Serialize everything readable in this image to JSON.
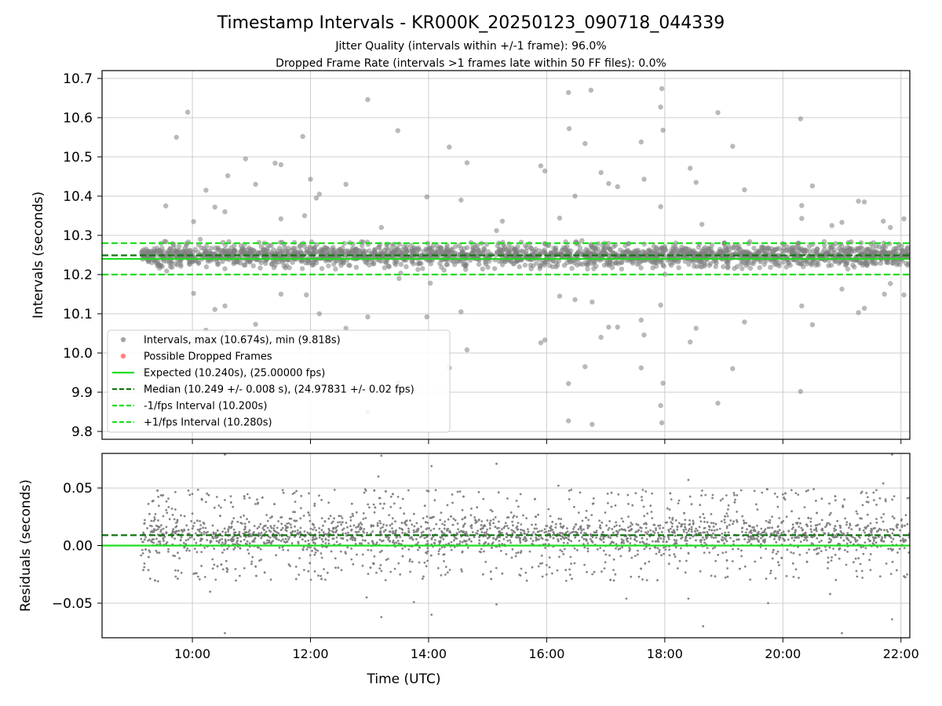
{
  "title": "Timestamp Intervals - KR000K_20250123_090718_044339",
  "subtitle_line1": "Jitter Quality (intervals within +/-1 frame): 96.0%",
  "subtitle_line2": "Dropped Frame Rate (intervals >1 frames late within 50 FF files): 0.0%",
  "colors": {
    "points": "#808080",
    "dropped": "#ff4d4d",
    "expected": "#22dd22",
    "median": "#117711",
    "interval_lines": "#22dd22",
    "grid": "#cccccc"
  },
  "chart_data": [
    {
      "type": "scatter",
      "panel": "top",
      "ylabel": "Intervals (seconds)",
      "xlabel": "",
      "xlim": [
        8.47,
        22.15
      ],
      "ylim": [
        9.78,
        10.72
      ],
      "x_unit": "hours UTC",
      "xticks": [
        10,
        12,
        14,
        16,
        18,
        20,
        22
      ],
      "xtick_labels": [],
      "yticks": [
        9.8,
        9.9,
        10.0,
        10.1,
        10.2,
        10.3,
        10.4,
        10.5,
        10.6,
        10.7
      ],
      "ytick_labels": [
        "9.8",
        "9.9",
        "10.0",
        "10.1",
        "10.2",
        "10.3",
        "10.4",
        "10.5",
        "10.6",
        "10.7"
      ],
      "grid": true,
      "legend_position": "lower-left",
      "x_range": [
        9.13,
        22.15
      ],
      "series": [
        {
          "name": "Intervals, max (10.674s), min (9.818s)",
          "kind": "scatter",
          "color": "#808080",
          "band_center": 10.249,
          "band_spread": 0.035,
          "outliers": [
            [
              9.55,
              10.375
            ],
            [
              9.73,
              10.55
            ],
            [
              9.92,
              10.614
            ],
            [
              10.02,
              10.335
            ],
            [
              10.02,
              10.152
            ],
            [
              10.23,
              10.415
            ],
            [
              10.38,
              10.372
            ],
            [
              10.55,
              10.36
            ],
            [
              10.55,
              10.12
            ],
            [
              10.6,
              10.452
            ],
            [
              10.9,
              10.495
            ],
            [
              11.07,
              10.43
            ],
            [
              11.4,
              10.484
            ],
            [
              11.5,
              10.48
            ],
            [
              11.5,
              10.342
            ],
            [
              11.5,
              10.15
            ],
            [
              11.87,
              10.552
            ],
            [
              11.9,
              10.35
            ],
            [
              11.93,
              10.148
            ],
            [
              12.0,
              10.443
            ],
            [
              12.1,
              10.395
            ],
            [
              12.15,
              10.405
            ],
            [
              12.15,
              10.1
            ],
            [
              12.6,
              10.43
            ],
            [
              12.97,
              10.646
            ],
            [
              13.2,
              10.32
            ],
            [
              13.48,
              10.567
            ],
            [
              13.5,
              10.19
            ],
            [
              13.97,
              10.398
            ],
            [
              13.97,
              10.092
            ],
            [
              14.03,
              10.178
            ],
            [
              14.35,
              10.525
            ],
            [
              14.55,
              10.39
            ],
            [
              14.55,
              10.105
            ],
            [
              14.65,
              10.485
            ],
            [
              15.15,
              10.312
            ],
            [
              15.25,
              10.336
            ],
            [
              15.9,
              10.477
            ],
            [
              15.97,
              10.464
            ],
            [
              15.97,
              10.033
            ],
            [
              15.9,
              10.026
            ],
            [
              16.22,
              10.344
            ],
            [
              16.22,
              10.145
            ],
            [
              16.37,
              10.664
            ],
            [
              16.38,
              10.572
            ],
            [
              16.48,
              10.4
            ],
            [
              16.48,
              10.136
            ],
            [
              16.65,
              10.534
            ],
            [
              16.75,
              10.67
            ],
            [
              16.77,
              10.13
            ],
            [
              16.92,
              10.46
            ],
            [
              17.05,
              10.432
            ],
            [
              17.2,
              10.424
            ],
            [
              17.6,
              10.538
            ],
            [
              17.6,
              10.084
            ],
            [
              17.65,
              10.443
            ],
            [
              17.93,
              10.627
            ],
            [
              17.95,
              10.674
            ],
            [
              17.97,
              10.568
            ],
            [
              17.93,
              10.373
            ],
            [
              17.93,
              10.122
            ],
            [
              18.43,
              10.471
            ],
            [
              18.53,
              10.435
            ],
            [
              18.63,
              10.328
            ],
            [
              18.53,
              10.063
            ],
            [
              18.9,
              10.613
            ],
            [
              19.15,
              10.527
            ],
            [
              19.35,
              10.416
            ],
            [
              19.35,
              10.079
            ],
            [
              20.3,
              10.597
            ],
            [
              20.32,
              10.376
            ],
            [
              20.32,
              10.343
            ],
            [
              20.32,
              10.12
            ],
            [
              20.5,
              10.426
            ],
            [
              20.5,
              10.072
            ],
            [
              20.83,
              10.325
            ],
            [
              21.0,
              10.333
            ],
            [
              21.0,
              10.163
            ],
            [
              21.28,
              10.387
            ],
            [
              21.28,
              10.103
            ],
            [
              21.38,
              10.385
            ],
            [
              21.38,
              10.114
            ],
            [
              21.7,
              10.336
            ],
            [
              21.72,
              10.15
            ],
            [
              21.82,
              10.32
            ],
            [
              21.82,
              10.177
            ],
            [
              22.05,
              10.342
            ],
            [
              22.05,
              10.148
            ],
            [
              10.23,
              10.058
            ],
            [
              10.38,
              10.111
            ],
            [
              10.55,
              10.053
            ],
            [
              11.07,
              10.073
            ],
            [
              12.6,
              10.063
            ],
            [
              12.97,
              10.092
            ],
            [
              14.35,
              9.962
            ],
            [
              14.65,
              10.008
            ],
            [
              16.37,
              9.922
            ],
            [
              16.37,
              9.827
            ],
            [
              16.65,
              9.965
            ],
            [
              16.77,
              9.818
            ],
            [
              16.92,
              10.04
            ],
            [
              17.05,
              10.066
            ],
            [
              17.2,
              10.066
            ],
            [
              17.6,
              9.962
            ],
            [
              17.65,
              10.046
            ],
            [
              17.93,
              9.866
            ],
            [
              17.95,
              9.822
            ],
            [
              17.97,
              9.923
            ],
            [
              18.43,
              10.028
            ],
            [
              18.9,
              9.872
            ],
            [
              19.15,
              9.96
            ],
            [
              20.3,
              9.902
            ],
            [
              12.97,
              9.849
            ],
            [
              13.48,
              9.924
            ]
          ]
        },
        {
          "name": "Possible Dropped Frames",
          "kind": "scatter",
          "color": "#ff4d4d",
          "values": []
        },
        {
          "name": "Expected (10.240s), (25.00000 fps)",
          "kind": "hline",
          "y": 10.24,
          "color": "#22dd22",
          "style": "solid"
        },
        {
          "name": "Median (10.249 +/- 0.008 s), (24.97831 +/- 0.02 fps)",
          "kind": "hline",
          "y": 10.249,
          "color": "#117711",
          "style": "dashed"
        },
        {
          "name": "-1/fps Interval (10.200s)",
          "kind": "hline",
          "y": 10.2,
          "color": "#22dd22",
          "style": "dashed"
        },
        {
          "name": "+1/fps Interval (10.280s)",
          "kind": "hline",
          "y": 10.28,
          "color": "#22dd22",
          "style": "dashed"
        }
      ]
    },
    {
      "type": "scatter",
      "panel": "bottom",
      "ylabel": "Residuals (seconds)",
      "xlabel": "Time (UTC)",
      "xlim": [
        8.47,
        22.15
      ],
      "ylim": [
        -0.08,
        0.08
      ],
      "xticks": [
        10,
        12,
        14,
        16,
        18,
        20,
        22
      ],
      "xtick_labels": [
        "10:00",
        "12:00",
        "14:00",
        "16:00",
        "18:00",
        "20:00",
        "22:00"
      ],
      "yticks": [
        -0.05,
        0.0,
        0.05
      ],
      "ytick_labels": [
        "−0.05",
        "0.00",
        "0.05"
      ],
      "grid": true,
      "x_range": [
        9.13,
        22.15
      ],
      "series": [
        {
          "name": "residuals",
          "kind": "scatter",
          "color": "#808080",
          "band_center": 0.009,
          "band_spread": 0.018,
          "outliers": [
            [
              10.55,
              0.079
            ],
            [
              10.55,
              -0.076
            ],
            [
              13.15,
              0.06
            ],
            [
              13.2,
              -0.062
            ],
            [
              13.2,
              0.078
            ],
            [
              13.75,
              -0.049
            ],
            [
              14.05,
              0.069
            ],
            [
              14.05,
              -0.06
            ],
            [
              15.15,
              0.071
            ],
            [
              15.15,
              -0.051
            ],
            [
              17.35,
              -0.046
            ],
            [
              18.4,
              0.057
            ],
            [
              18.4,
              -0.046
            ],
            [
              18.65,
              -0.07
            ],
            [
              20.8,
              -0.042
            ],
            [
              21.0,
              -0.076
            ],
            [
              21.7,
              0.054
            ],
            [
              21.85,
              0.079
            ],
            [
              21.85,
              -0.064
            ],
            [
              12.95,
              -0.045
            ],
            [
              10.3,
              -0.04
            ],
            [
              16.2,
              0.052
            ],
            [
              19.75,
              -0.05
            ]
          ]
        },
        {
          "name": "zero",
          "kind": "hline",
          "y": 0.0,
          "color": "#22dd22",
          "style": "solid"
        },
        {
          "name": "median",
          "kind": "hline",
          "y": 0.009,
          "color": "#117711",
          "style": "dashed"
        }
      ]
    }
  ]
}
